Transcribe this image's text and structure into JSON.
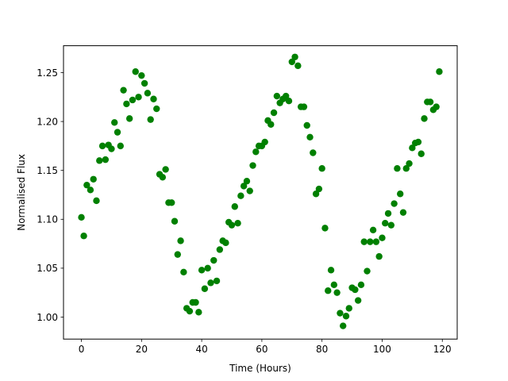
{
  "chart_data": {
    "type": "scatter",
    "title": "",
    "xlabel": "Time (Hours)",
    "ylabel": "Normalised Flux",
    "xlim": [
      -5.95,
      124.95
    ],
    "ylim": [
      0.9775,
      1.2775
    ],
    "xticks": [
      0,
      20,
      40,
      60,
      80,
      100,
      120
    ],
    "xtick_labels": [
      "0",
      "20",
      "40",
      "60",
      "80",
      "100",
      "120"
    ],
    "yticks": [
      1.0,
      1.05,
      1.1,
      1.15,
      1.2,
      1.25
    ],
    "ytick_labels": [
      "1.00",
      "1.05",
      "1.10",
      "1.15",
      "1.20",
      "1.25"
    ],
    "grid": false,
    "marker_color": "#008000",
    "series": [
      {
        "points": [
          [
            0.0,
            1.102
          ],
          [
            0.8,
            1.083
          ],
          [
            1.8,
            1.135
          ],
          [
            3.0,
            1.13
          ],
          [
            4.0,
            1.141
          ],
          [
            5.0,
            1.119
          ],
          [
            6.0,
            1.16
          ],
          [
            7.0,
            1.175
          ],
          [
            8.0,
            1.161
          ],
          [
            9.0,
            1.176
          ],
          [
            10.0,
            1.172
          ],
          [
            11.0,
            1.199
          ],
          [
            12.0,
            1.189
          ],
          [
            13.0,
            1.175
          ],
          [
            14.0,
            1.232
          ],
          [
            15.0,
            1.218
          ],
          [
            16.0,
            1.203
          ],
          [
            17.0,
            1.222
          ],
          [
            18.0,
            1.251
          ],
          [
            19.0,
            1.225
          ],
          [
            20.0,
            1.247
          ],
          [
            21.0,
            1.239
          ],
          [
            22.0,
            1.229
          ],
          [
            23.0,
            1.202
          ],
          [
            24.0,
            1.223
          ],
          [
            25.0,
            1.213
          ],
          [
            26.0,
            1.146
          ],
          [
            27.0,
            1.143
          ],
          [
            28.0,
            1.151
          ],
          [
            29.0,
            1.117
          ],
          [
            30.0,
            1.117
          ],
          [
            31.0,
            1.098
          ],
          [
            32.0,
            1.064
          ],
          [
            33.0,
            1.078
          ],
          [
            34.0,
            1.046
          ],
          [
            35.0,
            1.009
          ],
          [
            36.0,
            1.006
          ],
          [
            37.0,
            1.015
          ],
          [
            38.0,
            1.015
          ],
          [
            39.0,
            1.005
          ],
          [
            40.0,
            1.048
          ],
          [
            41.0,
            1.029
          ],
          [
            42.0,
            1.05
          ],
          [
            43.0,
            1.035
          ],
          [
            44.0,
            1.058
          ],
          [
            45.0,
            1.037
          ],
          [
            46.0,
            1.069
          ],
          [
            47.0,
            1.078
          ],
          [
            48.0,
            1.076
          ],
          [
            49.0,
            1.097
          ],
          [
            50.0,
            1.094
          ],
          [
            51.0,
            1.113
          ],
          [
            52.0,
            1.096
          ],
          [
            53.0,
            1.124
          ],
          [
            54.0,
            1.134
          ],
          [
            55.0,
            1.139
          ],
          [
            56.0,
            1.129
          ],
          [
            57.0,
            1.155
          ],
          [
            58.0,
            1.169
          ],
          [
            59.0,
            1.175
          ],
          [
            60.0,
            1.175
          ],
          [
            61.0,
            1.179
          ],
          [
            62.0,
            1.201
          ],
          [
            63.0,
            1.197
          ],
          [
            64.0,
            1.209
          ],
          [
            65.0,
            1.226
          ],
          [
            66.0,
            1.219
          ],
          [
            67.0,
            1.223
          ],
          [
            68.0,
            1.226
          ],
          [
            69.0,
            1.221
          ],
          [
            70.0,
            1.261
          ],
          [
            71.0,
            1.266
          ],
          [
            72.0,
            1.257
          ],
          [
            73.0,
            1.215
          ],
          [
            74.0,
            1.215
          ],
          [
            75.0,
            1.196
          ],
          [
            76.0,
            1.184
          ],
          [
            77.0,
            1.168
          ],
          [
            78.0,
            1.126
          ],
          [
            79.0,
            1.131
          ],
          [
            80.0,
            1.152
          ],
          [
            81.0,
            1.091
          ],
          [
            82.0,
            1.027
          ],
          [
            83.0,
            1.048
          ],
          [
            84.0,
            1.033
          ],
          [
            85.0,
            1.025
          ],
          [
            86.0,
            1.004
          ],
          [
            87.0,
            0.991
          ],
          [
            88.0,
            1.001
          ],
          [
            89.0,
            1.009
          ],
          [
            90.0,
            1.03
          ],
          [
            91.0,
            1.028
          ],
          [
            92.0,
            1.017
          ],
          [
            93.0,
            1.033
          ],
          [
            94.0,
            1.077
          ],
          [
            95.0,
            1.047
          ],
          [
            96.0,
            1.077
          ],
          [
            97.0,
            1.089
          ],
          [
            98.0,
            1.077
          ],
          [
            99.0,
            1.062
          ],
          [
            100.0,
            1.081
          ],
          [
            101.0,
            1.096
          ],
          [
            102.0,
            1.106
          ],
          [
            103.0,
            1.094
          ],
          [
            104.0,
            1.116
          ],
          [
            105.0,
            1.152
          ],
          [
            106.0,
            1.126
          ],
          [
            107.0,
            1.107
          ],
          [
            108.0,
            1.152
          ],
          [
            109.0,
            1.157
          ],
          [
            110.0,
            1.173
          ],
          [
            111.0,
            1.178
          ],
          [
            112.0,
            1.179
          ],
          [
            113.0,
            1.167
          ],
          [
            114.0,
            1.203
          ],
          [
            115.0,
            1.22
          ],
          [
            116.0,
            1.22
          ],
          [
            117.0,
            1.212
          ],
          [
            118.0,
            1.215
          ],
          [
            119.0,
            1.251
          ]
        ]
      }
    ]
  }
}
